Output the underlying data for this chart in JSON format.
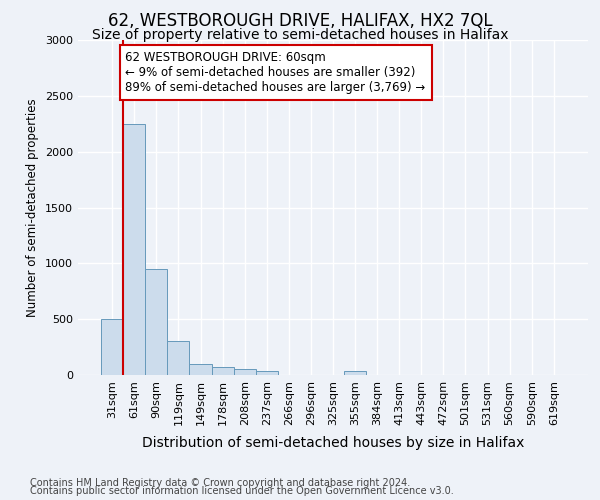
{
  "title1": "62, WESTBOROUGH DRIVE, HALIFAX, HX2 7QL",
  "title2": "Size of property relative to semi-detached houses in Halifax",
  "xlabel": "Distribution of semi-detached houses by size in Halifax",
  "ylabel": "Number of semi-detached properties",
  "categories": [
    "31sqm",
    "61sqm",
    "90sqm",
    "119sqm",
    "149sqm",
    "178sqm",
    "208sqm",
    "237sqm",
    "266sqm",
    "296sqm",
    "325sqm",
    "355sqm",
    "384sqm",
    "413sqm",
    "443sqm",
    "472sqm",
    "501sqm",
    "531sqm",
    "560sqm",
    "590sqm",
    "619sqm"
  ],
  "values": [
    500,
    2250,
    950,
    305,
    100,
    70,
    50,
    35,
    0,
    0,
    0,
    35,
    0,
    0,
    0,
    0,
    0,
    0,
    0,
    0,
    0
  ],
  "bar_color": "#ccdcec",
  "bar_edge_color": "#6699bb",
  "highlight_index": 1,
  "highlight_color": "#cc0000",
  "ylim": [
    0,
    3000
  ],
  "yticks": [
    0,
    500,
    1000,
    1500,
    2000,
    2500,
    3000
  ],
  "annotation_title": "62 WESTBOROUGH DRIVE: 60sqm",
  "annotation_line1": "← 9% of semi-detached houses are smaller (392)",
  "annotation_line2": "89% of semi-detached houses are larger (3,769) →",
  "annotation_box_facecolor": "#ffffff",
  "annotation_border_color": "#cc0000",
  "footer1": "Contains HM Land Registry data © Crown copyright and database right 2024.",
  "footer2": "Contains public sector information licensed under the Open Government Licence v3.0.",
  "background_color": "#eef2f8",
  "grid_color": "#ffffff",
  "title1_fontsize": 12,
  "title2_fontsize": 10,
  "xlabel_fontsize": 10,
  "ylabel_fontsize": 8.5,
  "tick_fontsize": 8,
  "footer_fontsize": 7
}
